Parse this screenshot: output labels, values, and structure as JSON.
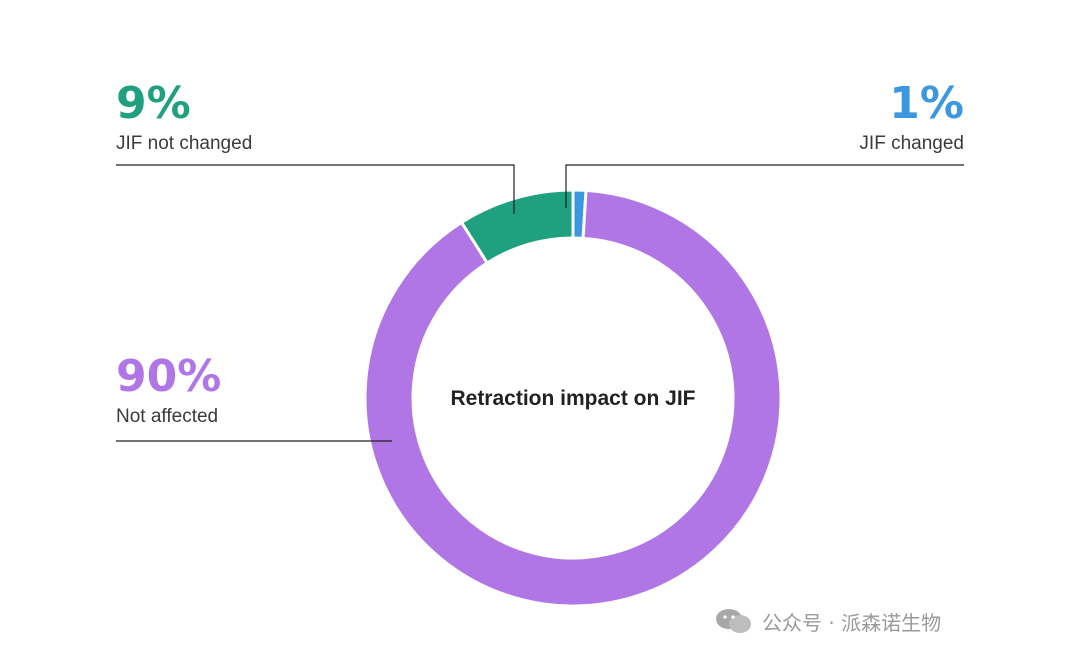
{
  "chart_data": {
    "type": "donut",
    "center_label": "Retraction impact on JIF",
    "slices": [
      {
        "label": "JIF changed",
        "value": 1,
        "display": "1%",
        "color": "#3a97e0"
      },
      {
        "label": "Not affected",
        "value": 90,
        "display": "90%",
        "color": "#b076e6"
      },
      {
        "label": "JIF not changed",
        "value": 9,
        "display": "9%",
        "color": "#1fa07e"
      }
    ]
  },
  "watermark": {
    "text": "公众号 · 派森诺生物"
  }
}
